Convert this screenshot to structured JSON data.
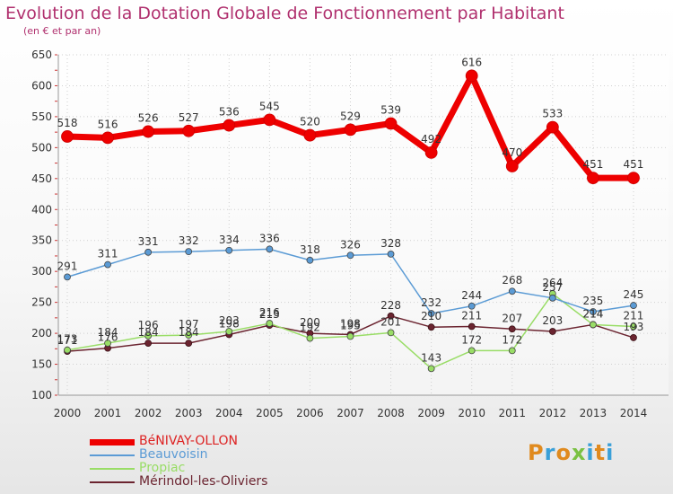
{
  "title": "Evolution de la Dotation Globale de Fonctionnement par Habitant",
  "subtitle": "(en € et par an)",
  "logo_text": "Proxiti",
  "colors": {
    "title": "#b0306e",
    "grid": "#d0d0d0",
    "axis_text": "#333333"
  },
  "chart_data": {
    "type": "line",
    "x": [
      "2000",
      "2001",
      "2002",
      "2003",
      "2004",
      "2005",
      "2006",
      "2007",
      "2008",
      "2009",
      "2010",
      "2011",
      "2012",
      "2013",
      "2014"
    ],
    "ylim": [
      100,
      650
    ],
    "yticks": [
      100,
      150,
      200,
      250,
      300,
      350,
      400,
      450,
      500,
      550,
      600,
      650
    ],
    "grid": true,
    "legend_position": "bottom-left",
    "series": [
      {
        "name": "BéNIVAY-OLLON",
        "color": "#ee0000",
        "width": 7,
        "values": [
          518,
          516,
          526,
          527,
          536,
          545,
          520,
          529,
          539,
          492,
          616,
          470,
          533,
          451,
          451
        ],
        "labels": [
          "518",
          "516",
          "526",
          "527",
          "536",
          "545",
          "520",
          "529",
          "539",
          "492",
          "616",
          "470",
          "533",
          "451",
          "451"
        ]
      },
      {
        "name": "Beauvoisin",
        "color": "#5b9bd5",
        "width": 1.5,
        "values": [
          291,
          311,
          331,
          332,
          334,
          336,
          318,
          326,
          328,
          232,
          244,
          268,
          257,
          235,
          245
        ],
        "labels": [
          "291",
          "311",
          "331",
          "332",
          "334",
          "336",
          "318",
          "326",
          "328",
          "232",
          "244",
          "268",
          "257",
          "235",
          "245"
        ]
      },
      {
        "name": "Propiac",
        "color": "#99dd66",
        "width": 1.5,
        "values": [
          173,
          184,
          196,
          197,
          203,
          216,
          192,
          195,
          201,
          143,
          172,
          172,
          264,
          214,
          211
        ],
        "labels": [
          "173",
          "184",
          "196",
          "197",
          "203",
          "216",
          "192",
          "195",
          "201",
          "143",
          "172",
          "172",
          "264",
          "214",
          "211"
        ]
      },
      {
        "name": "Mérindol-les-Oliviers",
        "color": "#6b2430",
        "width": 1.5,
        "values": [
          171,
          176,
          184,
          184,
          198,
          213,
          200,
          198,
          228,
          210,
          211,
          207,
          203,
          214,
          193
        ],
        "labels": [
          "171",
          "176",
          "184",
          "184",
          "198",
          "213",
          "200",
          "198",
          "228",
          "210",
          "211",
          "207",
          "203",
          "214",
          "193"
        ]
      }
    ]
  }
}
